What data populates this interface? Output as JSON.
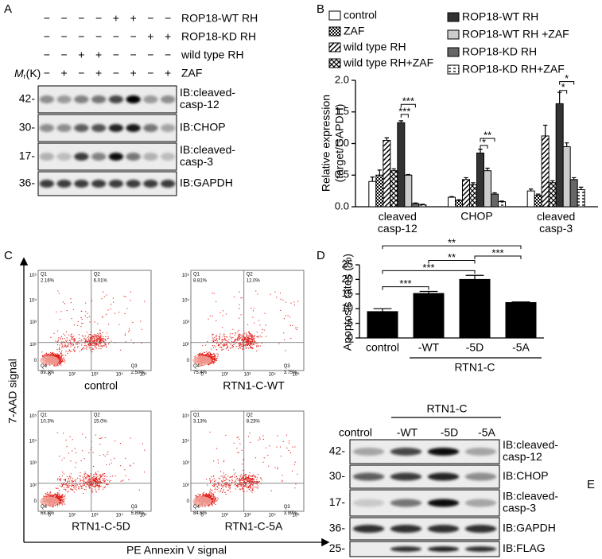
{
  "panel_labels": [
    "A",
    "B",
    "C",
    "D",
    "E"
  ],
  "blot_a": {
    "conditions": [
      {
        "name": "ROP18-WT RH",
        "signs": [
          "−",
          "−",
          "−",
          "−",
          "+",
          "+",
          "−",
          "−"
        ]
      },
      {
        "name": "ROP18-KD RH",
        "signs": [
          "−",
          "−",
          "−",
          "−",
          "−",
          "−",
          "+",
          "+"
        ]
      },
      {
        "name": "wild type RH",
        "signs": [
          "−",
          "−",
          "+",
          "+",
          "−",
          "−",
          "−",
          "−"
        ]
      },
      {
        "name": "ZAF",
        "signs": [
          "−",
          "+",
          "−",
          "+",
          "−",
          "+",
          "−",
          "+"
        ]
      }
    ],
    "mr": {
      "symbol": "M",
      "subscript": "r",
      "unit": "(K)"
    },
    "rows": [
      {
        "marker": "42-",
        "label": [
          "IB:cleaved-",
          "casp-12"
        ]
      },
      {
        "marker": "30-",
        "label": [
          "IB:CHOP"
        ]
      },
      {
        "marker": "17-",
        "label": [
          "IB:cleaved-",
          "casp-3"
        ]
      },
      {
        "marker": "36-",
        "label": [
          "IB:GAPDH"
        ]
      }
    ]
  },
  "chart_data": [
    {
      "type": "bar",
      "ylabel": [
        "Relative expression",
        "(target/GAPDH)"
      ],
      "categories": [
        "cleaved casp-12",
        "CHOP",
        "cleaved casp-3"
      ],
      "series": [
        {
          "name": "control",
          "color": "#ffffff",
          "pattern": "solid",
          "values": [
            0.4,
            0.15,
            0.25
          ],
          "errors": [
            0.07,
            0.01,
            0.03
          ]
        },
        {
          "name": "ZAF",
          "color": "#ffffff",
          "pattern": "checker",
          "values": [
            0.5,
            0.1,
            0.18
          ],
          "errors": [
            0.08,
            0.01,
            0.02
          ]
        },
        {
          "name": "wild type RH",
          "color": "#ffffff",
          "pattern": "diagonal",
          "values": [
            1.05,
            0.43,
            1.12
          ],
          "errors": [
            0.04,
            0.03,
            0.17
          ]
        },
        {
          "name": "wild type RH+ZAF",
          "color": "#ffffff",
          "pattern": "cross",
          "values": [
            0.57,
            0.35,
            0.38
          ],
          "errors": [
            0.03,
            0.03,
            0.03
          ]
        },
        {
          "name": "ROP18-WT RH",
          "color": "#333333",
          "pattern": "solid",
          "values": [
            1.33,
            0.85,
            1.63
          ],
          "errors": [
            0.03,
            0.06,
            0.18
          ]
        },
        {
          "name": "ROP18-WT RH +ZAF",
          "color": "#cccccc",
          "pattern": "solid",
          "values": [
            0.5,
            0.57,
            0.95
          ],
          "errors": [
            0.01,
            0.04,
            0.06
          ]
        },
        {
          "name": "ROP18-KD RH",
          "color": "#666666",
          "pattern": "solid",
          "values": [
            0.05,
            0.2,
            0.43
          ],
          "errors": [
            0.01,
            0.02,
            0.03
          ]
        },
        {
          "name": "ROP18-KD RH+ZAF",
          "color": "#ffffff",
          "pattern": "hdash",
          "values": [
            0.03,
            0.08,
            0.27
          ],
          "errors": [
            0.01,
            0.01,
            0.04
          ]
        }
      ],
      "ylim": [
        0,
        2
      ],
      "yticks": [
        {
          "value": 0,
          "label": "0.0"
        },
        0.5,
        {
          "value": 1,
          "label": "1.0"
        },
        1.5,
        {
          "value": 2,
          "label": "2.0"
        }
      ],
      "annotations": [
        "***",
        "***",
        "**",
        "*",
        "*",
        "*"
      ]
    },
    {
      "type": "bar",
      "ylabel": [
        "Apoptosis rates (%)"
      ],
      "categories": [
        "control",
        "-WT",
        "-5D",
        "-5A"
      ],
      "group_label": "RTN1-C",
      "values": [
        9.0,
        15.2,
        20.0,
        12.1
      ],
      "errors": [
        1.0,
        0.7,
        1.4,
        0.2
      ],
      "color": "#000000",
      "ylim": [
        0,
        25
      ],
      "yticks": [
        0,
        5,
        10,
        15,
        20,
        25
      ],
      "annotations": [
        "***",
        "***",
        "**",
        "***",
        "**"
      ]
    }
  ],
  "flow_c": {
    "ylabel": "7-AAD signal",
    "xlabel": "PE Annexin V signal",
    "ticks": [
      "0",
      "10²",
      "10³",
      "10⁴",
      "10⁵"
    ],
    "quadrants": [
      "Q1",
      "Q2",
      "Q3",
      "Q4"
    ],
    "plots": [
      {
        "name": "control",
        "percents": [
          "2.16%",
          "6.01%",
          "2.50%",
          "89.3%"
        ]
      },
      {
        "name": "RTN1-C-WT",
        "percents": [
          "8.81%",
          "12.0%",
          "3.75%",
          "75.4%"
        ]
      },
      {
        "name": "RTN1-C-5D",
        "percents": [
          "10.3%",
          "15.0%",
          "5.89%",
          "68.8%"
        ]
      },
      {
        "name": "RTN1-C-5A",
        "percents": [
          "3.13%",
          "8.23%",
          "3.99%",
          "84.6%"
        ]
      }
    ]
  },
  "blot_e": {
    "group": "RTN1-C",
    "lanes": [
      "control",
      "-WT",
      "-5D",
      "-5A"
    ],
    "rows": [
      {
        "marker": "42-",
        "label": [
          "IB:cleaved-",
          "casp-12"
        ]
      },
      {
        "marker": "30-",
        "label": [
          "IB:CHOP"
        ]
      },
      {
        "marker": "17-",
        "label": [
          "IB:cleaved-",
          "casp-3"
        ]
      },
      {
        "marker": "36-",
        "label": [
          "IB:GAPDH"
        ]
      },
      {
        "marker": "25-",
        "label": [
          "IB:FLAG"
        ]
      }
    ]
  }
}
